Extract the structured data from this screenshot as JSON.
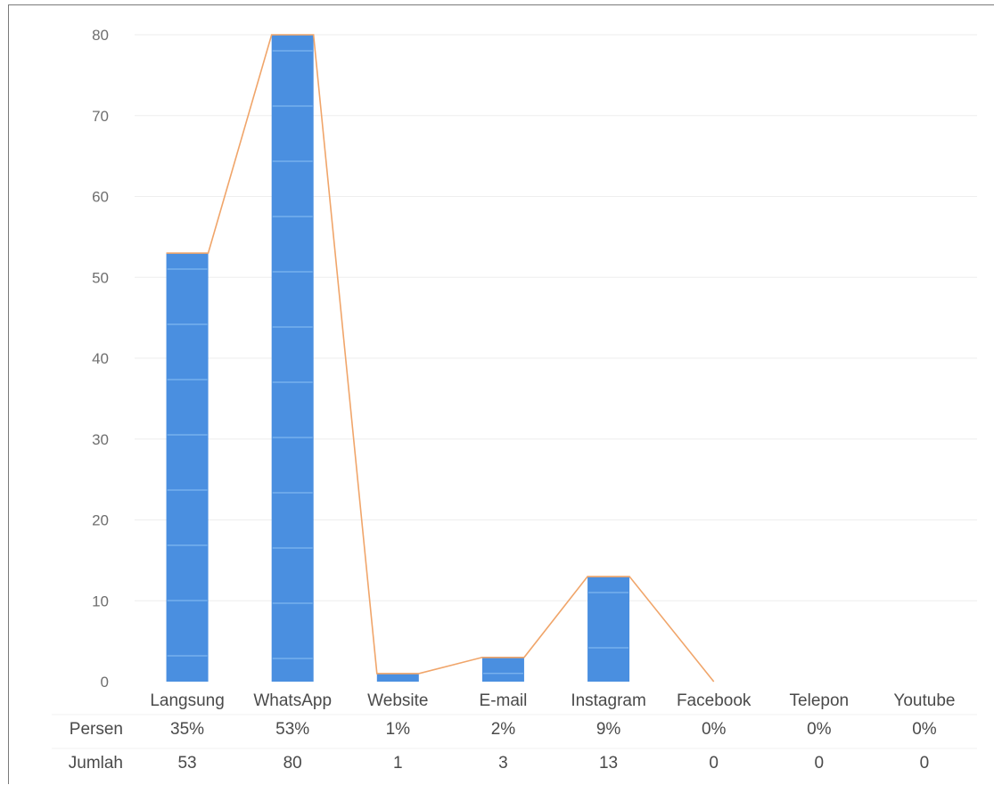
{
  "chart_data": {
    "type": "bar",
    "categories": [
      "Langsung",
      "WhatsApp",
      "Website",
      "E-mail",
      "Instagram",
      "Facebook",
      "Telepon",
      "Youtube"
    ],
    "series": [
      {
        "values": [
          53,
          80,
          1,
          3,
          13,
          0,
          0,
          0
        ],
        "color": "#4a8fe0",
        "kind": "bar"
      },
      {
        "values": [
          53,
          80,
          1,
          3,
          13,
          0,
          0,
          0
        ],
        "color": "#f0a56a",
        "kind": "line"
      }
    ],
    "ylim": [
      0,
      80
    ],
    "yticks": [
      0,
      10,
      20,
      30,
      40,
      50,
      60,
      70,
      80
    ],
    "grid": true,
    "data_table": {
      "rows": [
        {
          "label": "Persen",
          "values": [
            "35%",
            "53%",
            "1%",
            "2%",
            "9%",
            "0%",
            "0%",
            "0%"
          ]
        },
        {
          "label": "Jumlah",
          "values": [
            "53",
            "80",
            "1",
            "3",
            "13",
            "0",
            "0",
            "0"
          ]
        }
      ]
    }
  }
}
